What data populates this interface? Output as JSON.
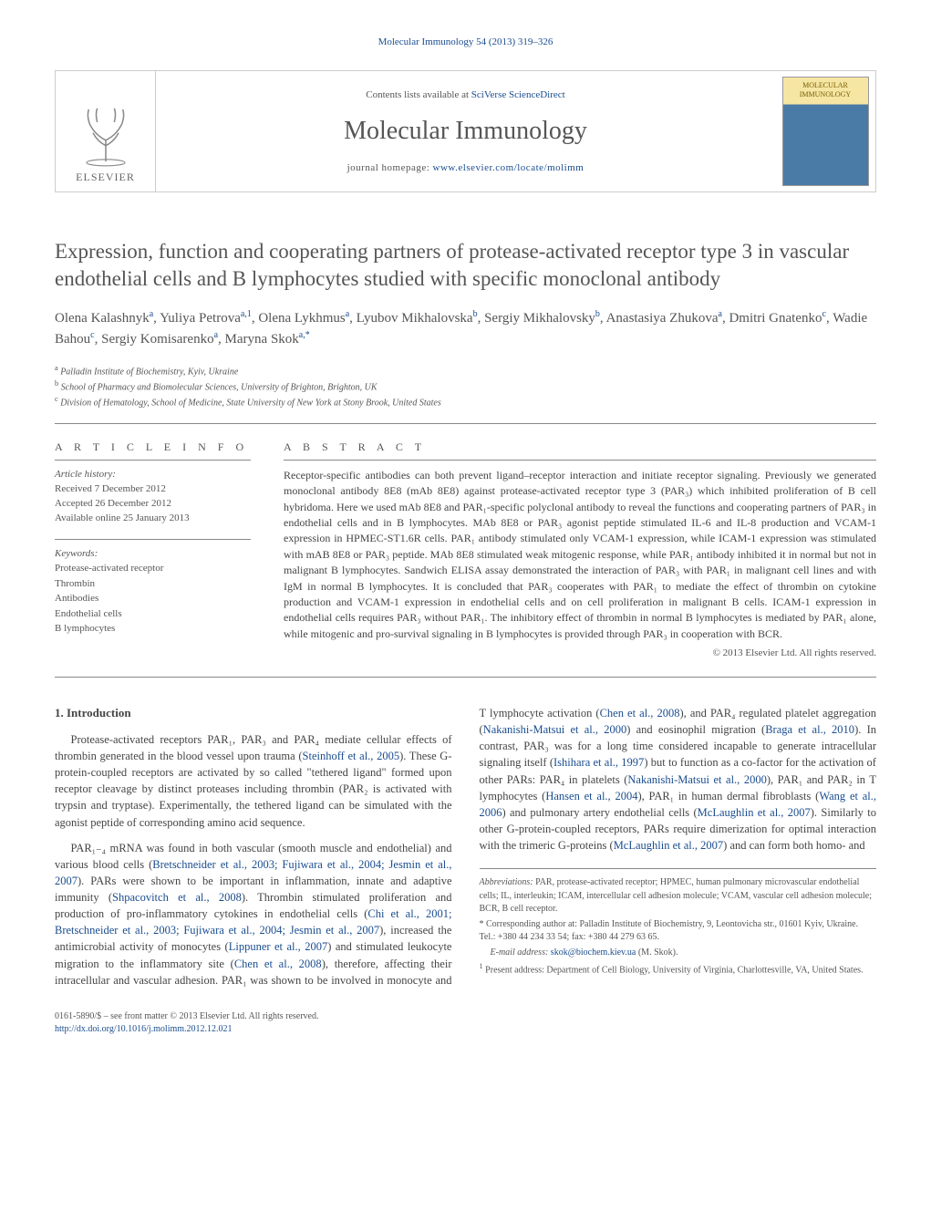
{
  "running_header": "Molecular Immunology 54 (2013) 319–326",
  "header": {
    "contents_prefix": "Contents lists available at ",
    "contents_link": "SciVerse ScienceDirect",
    "journal_name": "Molecular Immunology",
    "homepage_prefix": "journal homepage: ",
    "homepage_link": "www.elsevier.com/locate/molimm",
    "publisher": "ELSEVIER",
    "cover_title": "MOLECULAR IMMUNOLOGY"
  },
  "title": "Expression, function and cooperating partners of protease-activated receptor type 3 in vascular endothelial cells and B lymphocytes studied with specific monoclonal antibody",
  "authors": [
    {
      "name": "Olena Kalashnyk",
      "aff": "a"
    },
    {
      "name": "Yuliya Petrova",
      "aff": "a,1"
    },
    {
      "name": "Olena Lykhmus",
      "aff": "a"
    },
    {
      "name": "Lyubov Mikhalovska",
      "aff": "b"
    },
    {
      "name": "Sergiy Mikhalovsky",
      "aff": "b"
    },
    {
      "name": "Anastasiya Zhukova",
      "aff": "a"
    },
    {
      "name": "Dmitri Gnatenko",
      "aff": "c"
    },
    {
      "name": "Wadie Bahou",
      "aff": "c"
    },
    {
      "name": "Sergiy Komisarenko",
      "aff": "a"
    },
    {
      "name": "Maryna Skok",
      "aff": "a,*"
    }
  ],
  "affiliations": [
    {
      "sup": "a",
      "text": "Palladin Institute of Biochemistry, Kyiv, Ukraine"
    },
    {
      "sup": "b",
      "text": "School of Pharmacy and Biomolecular Sciences, University of Brighton, Brighton, UK"
    },
    {
      "sup": "c",
      "text": "Division of Hematology, School of Medicine, State University of New York at Stony Brook, United States"
    }
  ],
  "article_info": {
    "label": "A R T I C L E   I N F O",
    "history_label": "Article history:",
    "history": [
      "Received 7 December 2012",
      "Accepted 26 December 2012",
      "Available online 25 January 2013"
    ],
    "keywords_label": "Keywords:",
    "keywords": [
      "Protease-activated receptor",
      "Thrombin",
      "Antibodies",
      "Endothelial cells",
      "B lymphocytes"
    ]
  },
  "abstract": {
    "label": "A B S T R A C T",
    "text": "Receptor-specific antibodies can both prevent ligand–receptor interaction and initiate receptor signaling. Previously we generated monoclonal antibody 8E8 (mAb 8E8) against protease-activated receptor type 3 (PAR₃) which inhibited proliferation of B cell hybridoma. Here we used mAb 8E8 and PAR₁-specific polyclonal antibody to reveal the functions and cooperating partners of PAR₃ in endothelial cells and in B lymphocytes. MAb 8E8 or PAR₃ agonist peptide stimulated IL-6 and IL-8 production and VCAM-1 expression in HPMEC-ST1.6R cells. PAR₁ antibody stimulated only VCAM-1 expression, while ICAM-1 expression was stimulated with mAB 8E8 or PAR₃ peptide. MAb 8E8 stimulated weak mitogenic response, while PAR₁ antibody inhibited it in normal but not in malignant B lymphocytes. Sandwich ELISA assay demonstrated the interaction of PAR₃ with PAR₁ in malignant cell lines and with IgM in normal B lymphocytes. It is concluded that PAR₃ cooperates with PAR₁ to mediate the effect of thrombin on cytokine production and VCAM-1 expression in endothelial cells and on cell proliferation in malignant B cells. ICAM-1 expression in endothelial cells requires PAR₃ without PAR₁. The inhibitory effect of thrombin in normal B lymphocytes is mediated by PAR₁ alone, while mitogenic and pro-survival signaling in B lymphocytes is provided through PAR₃ in cooperation with BCR.",
    "copyright": "© 2013 Elsevier Ltd. All rights reserved."
  },
  "body": {
    "heading": "1.  Introduction",
    "p1_a": "Protease-activated receptors PAR₁, PAR₃ and PAR₄ mediate cellular effects of thrombin generated in the blood vessel upon trauma (",
    "p1_ref1": "Steinhoff et al., 2005",
    "p1_b": "). These G-protein-coupled receptors are activated by so called \"tethered ligand\" formed upon receptor cleavage by distinct proteases including thrombin (PAR₂ is activated with trypsin and tryptase). Experimentally, the tethered ligand can be simulated with the agonist peptide of corresponding amino acid sequence.",
    "p2_a": "PAR₁₋₄ mRNA was found in both vascular (smooth muscle and endothelial) and various blood cells (",
    "p2_ref1": "Bretschneider et al., 2003;",
    "p2_ref2": "Fujiwara et al., 2004; Jesmin et al., 2007",
    "p2_b": "). PARs were shown to be important in inflammation, innate and adaptive immunity (",
    "p2_ref3": "Shpacovitch et al., 2008",
    "p2_c": "). Thrombin stimulated proliferation and production of pro-inflammatory cytokines in endothelial cells (",
    "p2_ref4": "Chi et al., 2001; Bretschneider et al., 2003; Fujiwara et al., 2004; Jesmin et al., 2007",
    "p2_d": "), increased the antimicrobial activity of monocytes (",
    "p2_ref5": "Lippuner et al., 2007",
    "p2_e": ") and stimulated leukocyte migration to the inflammatory site (",
    "p2_ref6": "Chen et al., 2008",
    "p2_f": "), therefore, affecting their intracellular and vascular adhesion. PAR₁ was shown to be involved in monocyte and T lymphocyte activation (",
    "p2_ref7": "Chen et al., 2008",
    "p2_g": "), and PAR₄ regulated platelet aggregation (",
    "p2_ref8": "Nakanishi-Matsui et al., 2000",
    "p2_h": ") and eosinophil migration (",
    "p2_ref9": "Braga et al., 2010",
    "p2_i": "). In contrast, PAR₃ was for a long time considered incapable to generate intracellular signaling itself (",
    "p2_ref10": "Ishihara et al., 1997",
    "p2_j": ") but to function as a co-factor for the activation of other PARs: PAR₄ in platelets (",
    "p2_ref11": "Nakanishi-Matsui et al., 2000",
    "p2_k": "), PAR₁ and PAR₂ in T lymphocytes (",
    "p2_ref12": "Hansen et al., 2004",
    "p2_l": "), PAR₁ in human dermal fibroblasts (",
    "p2_ref13": "Wang et al., 2006",
    "p2_m": ") and pulmonary artery endothelial cells (",
    "p2_ref14": "McLaughlin et al., 2007",
    "p2_n": "). Similarly to other G-protein-coupled receptors, PARs require dimerization for optimal interaction with the trimeric G-proteins (",
    "p2_ref15": "McLaughlin et al., 2007",
    "p2_o": ") and can form both homo- and"
  },
  "footnotes": {
    "abbrev_label": "Abbreviations:",
    "abbrev": " PAR, protease-activated receptor; HPMEC, human pulmonary microvascular endothelial cells; IL, interleukin; ICAM, intercellular cell adhesion molecule; VCAM, vascular cell adhesion molecule; BCR, B cell receptor.",
    "corr_sym": "*",
    "corr": " Corresponding author at: Palladin Institute of Biochemistry, 9, Leontovicha str., 01601 Kyiv, Ukraine. Tel.: +380 44 234 33 54; fax: +380 44 279 63 65.",
    "email_label": "E-mail address: ",
    "email": "skok@biochem.kiev.ua",
    "email_tail": " (M. Skok).",
    "present_sym": "1",
    "present": " Present address: Department of Cell Biology, University of Virginia, Charlottesville, VA, United States."
  },
  "footer": {
    "line1": "0161-5890/$ – see front matter © 2013 Elsevier Ltd. All rights reserved.",
    "doi": "http://dx.doi.org/10.1016/j.molimm.2012.12.021"
  }
}
